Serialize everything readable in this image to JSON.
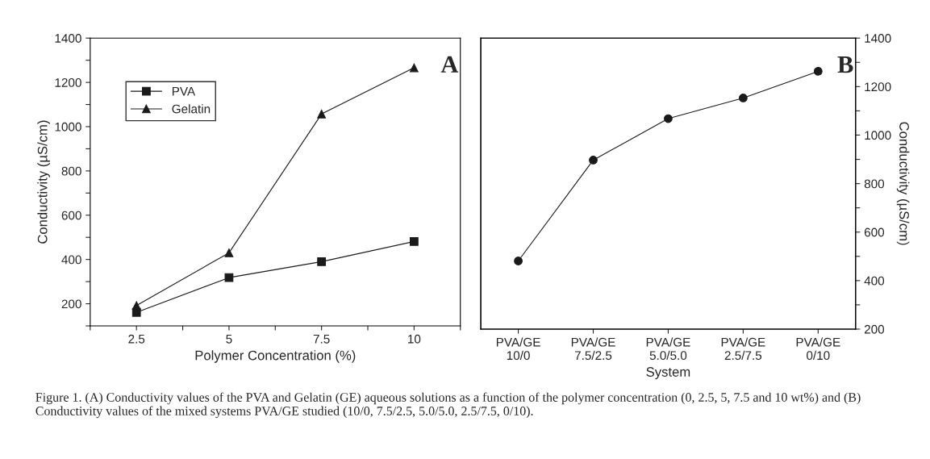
{
  "chart_data": [
    {
      "type": "line",
      "xlabel": "Polymer Concentration (%)",
      "ylabel": "Conductivity (µS/cm)",
      "x": [
        2.5,
        5,
        7.5,
        10
      ],
      "series": [
        {
          "name": "PVA",
          "color": "#1a1a1a",
          "marker": "square",
          "values": [
            161,
            318,
            390,
            481
          ]
        },
        {
          "name": "Gelatin",
          "color": "#1a1a1a",
          "marker": "triangle",
          "values": [
            192,
            430,
            1057,
            1266
          ]
        }
      ],
      "xlim": [
        1.25,
        11.25
      ],
      "xticks": [
        {
          "value": 1.25,
          "label": null
        },
        2.5,
        {
          "value": 3.75,
          "label": null
        },
        5,
        {
          "value": 6.25,
          "label": null
        },
        7.5,
        {
          "value": 8.75,
          "label": null
        },
        10,
        {
          "value": 11.25,
          "label": null
        }
      ],
      "ylim": [
        100,
        1400
      ],
      "yticks": [
        {
          "value": 100,
          "label": null
        },
        200,
        {
          "value": 300,
          "label": null
        },
        400,
        {
          "value": 500,
          "label": null
        },
        600,
        {
          "value": 700,
          "label": null
        },
        800,
        {
          "value": 900,
          "label": null
        },
        1000,
        {
          "value": 1100,
          "label": null
        },
        1200,
        {
          "value": 1300,
          "label": null
        },
        1400
      ],
      "legend": "top left",
      "grid": false,
      "annotations": [
        "A"
      ]
    },
    {
      "type": "line",
      "xlabel": "System",
      "y2label": "Conductivity (µS/cm)",
      "categories": [
        "PVA/GE\n10/0",
        "PVA/GE\n7.5/2.5",
        "PVA/GE\n5.0/5.0",
        "PVA/GE\n2.5/7.5",
        "PVA/GE\n0/10"
      ],
      "series": [
        {
          "color": "#1a1a1a",
          "marker": "circle",
          "axis": "y2",
          "values": [
            481,
            897,
            1068,
            1153,
            1263
          ]
        }
      ],
      "y2lim": [
        200,
        1400
      ],
      "y2ticks": [
        200,
        {
          "value": 300,
          "label": null
        },
        400,
        {
          "value": 500,
          "label": null
        },
        600,
        {
          "value": 700,
          "label": null
        },
        800,
        {
          "value": 900,
          "label": null
        },
        1000,
        {
          "value": 1100,
          "label": null
        },
        1200,
        {
          "value": 1300,
          "label": null
        },
        1400
      ],
      "grid": false,
      "annotations": [
        "B",
        "Figure 1. (A) Conductivity values of the PVA and Gelatin (GE) aqueous solutions as a function of the polymer concentration (0, 2.5, 5, 7.5 and 10 wt%) and (B) Conductivity values of the mixed systems PVA/GE studied (10/0, 7.5/2.5, 5.0/5.0, 2.5/7.5, 0/10)."
      ]
    }
  ]
}
